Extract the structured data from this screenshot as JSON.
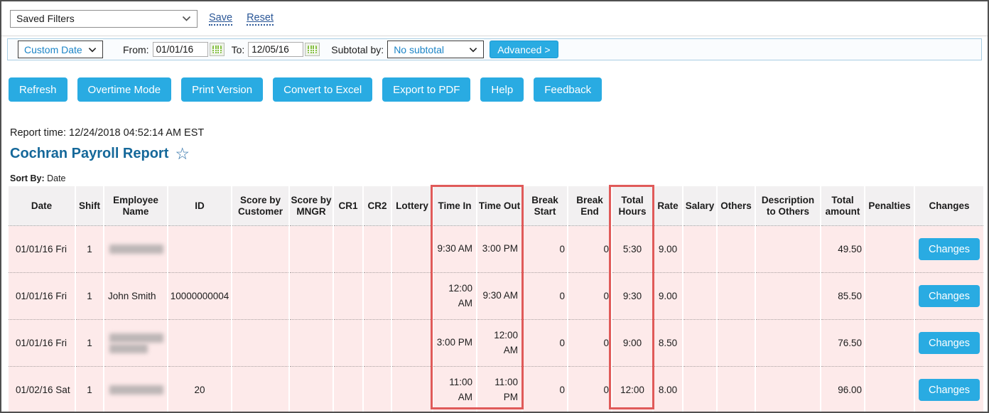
{
  "saved_filters": {
    "selected": "Saved Filters"
  },
  "links": {
    "save": "Save",
    "reset": "Reset"
  },
  "filter_bar": {
    "date_mode": "Custom Date",
    "from_label": "From:",
    "from_value": "01/01/16",
    "to_label": "To:",
    "to_value": "12/05/16",
    "subtotal_label": "Subtotal by:",
    "subtotal_value": "No subtotal",
    "advanced_label": "Advanced >"
  },
  "toolbar": {
    "buttons": [
      "Refresh",
      "Overtime Mode",
      "Print Version",
      "Convert to Excel",
      "Export to PDF",
      "Help",
      "Feedback"
    ]
  },
  "report": {
    "report_time": "Report time: 12/24/2018 04:52:14 AM EST",
    "title": "Cochran Payroll Report",
    "star_icon": "☆",
    "sort_by_label": "Sort By:",
    "sort_by_value": "Date"
  },
  "table": {
    "columns": [
      "Date",
      "Shift",
      "Employee Name",
      "ID",
      "Score by Customer",
      "Score by MNGR",
      "CR1",
      "CR2",
      "Lottery",
      "Time In",
      "Time Out",
      "Break Start",
      "Break End",
      "Total Hours",
      "Rate",
      "Salary",
      "Others",
      "Description to Others",
      "Total amount",
      "Penalties",
      "Changes"
    ],
    "rows": [
      {
        "date": "01/01/16 Fri",
        "shift": "1",
        "employee": "",
        "employee_redacted": true,
        "employee_blur_lines": 1,
        "id": "",
        "score_customer": "",
        "score_mngr": "",
        "cr1": "",
        "cr2": "",
        "lottery": "",
        "time_in": "9:30 AM",
        "time_out": "3:00 PM",
        "break_start": "0",
        "break_end": "0",
        "total_hours": "5:30",
        "rate": "9.00",
        "salary": "",
        "others": "",
        "description": "",
        "total_amount": "49.50",
        "penalties": "",
        "changes_label": "Changes"
      },
      {
        "date": "01/01/16 Fri",
        "shift": "1",
        "employee": "John Smith",
        "employee_redacted": false,
        "employee_blur_lines": 0,
        "id": "10000000004",
        "score_customer": "",
        "score_mngr": "",
        "cr1": "",
        "cr2": "",
        "lottery": "",
        "time_in": "12:00 AM",
        "time_out": "9:30 AM",
        "break_start": "0",
        "break_end": "0",
        "total_hours": "9:30",
        "rate": "9.00",
        "salary": "",
        "others": "",
        "description": "",
        "total_amount": "85.50",
        "penalties": "",
        "changes_label": "Changes"
      },
      {
        "date": "01/01/16 Fri",
        "shift": "1",
        "employee": "",
        "employee_redacted": true,
        "employee_blur_lines": 2,
        "id": "",
        "score_customer": "",
        "score_mngr": "",
        "cr1": "",
        "cr2": "",
        "lottery": "",
        "time_in": "3:00 PM",
        "time_out": "12:00 AM",
        "break_start": "0",
        "break_end": "0",
        "total_hours": "9:00",
        "rate": "8.50",
        "salary": "",
        "others": "",
        "description": "",
        "total_amount": "76.50",
        "penalties": "",
        "changes_label": "Changes"
      },
      {
        "date": "01/02/16 Sat",
        "shift": "1",
        "employee": "",
        "employee_redacted": true,
        "employee_blur_lines": 1,
        "id": "20",
        "score_customer": "",
        "score_mngr": "",
        "cr1": "",
        "cr2": "",
        "lottery": "",
        "time_in": "11:00 AM",
        "time_out": "11:00 PM",
        "break_start": "0",
        "break_end": "0",
        "total_hours": "12:00",
        "rate": "8.00",
        "salary": "",
        "others": "",
        "description": "",
        "total_amount": "96.00",
        "penalties": "",
        "changes_label": "Changes"
      }
    ]
  },
  "colors": {
    "accent_blue": "#29abe2",
    "title_blue": "#15689a",
    "link_blue": "#2b5797",
    "row_pink": "#fdeaea",
    "header_gray": "#f2f0f1",
    "highlight_red": "#e05a59",
    "calendar_green": "#84bf41"
  }
}
